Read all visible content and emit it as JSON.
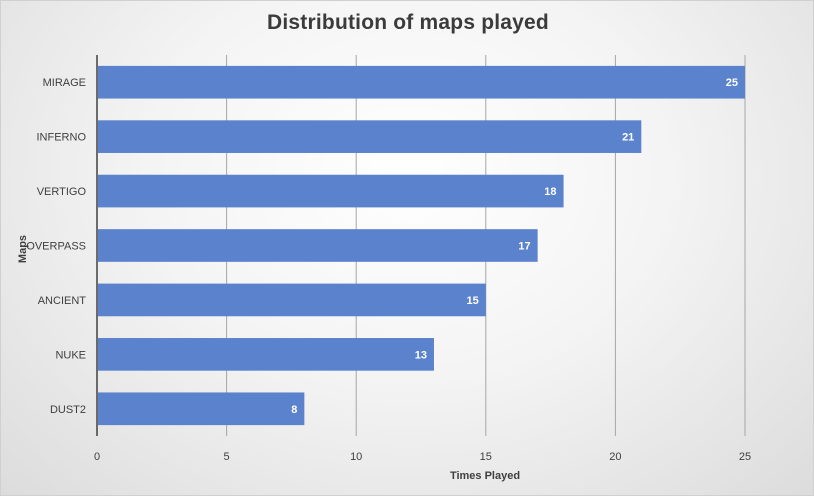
{
  "chart_data": {
    "type": "bar",
    "orientation": "horizontal",
    "title": "Distribution of maps played",
    "xlabel": "Times Played",
    "ylabel": "Maps",
    "categories": [
      "MIRAGE",
      "INFERNO",
      "VERTIGO",
      "OVERPASS",
      "ANCIENT",
      "NUKE",
      "DUST2"
    ],
    "values": [
      25,
      21,
      18,
      17,
      15,
      13,
      8
    ],
    "xlim": [
      0,
      25
    ],
    "xticks": [
      0,
      5,
      10,
      15,
      20,
      25
    ],
    "grid": true,
    "legend": "none",
    "bar_color": "#5b82cc",
    "data_labels": true
  }
}
